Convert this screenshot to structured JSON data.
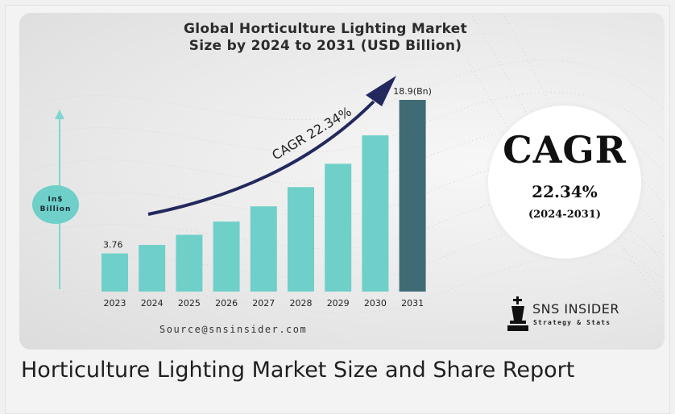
{
  "chart_data": {
    "type": "bar",
    "title": "Global Horticulture Lighting Market\nSize by 2024 to 2031 (USD Billion)",
    "categories": [
      "2023",
      "2024",
      "2025",
      "2026",
      "2027",
      "2028",
      "2029",
      "2030",
      "2031"
    ],
    "values": [
      3.76,
      4.6,
      5.6,
      6.9,
      8.4,
      10.3,
      12.6,
      15.4,
      18.9
    ],
    "data_labels": {
      "0": "3.76",
      "8": "18.9(Bn)"
    },
    "ylim": [
      0,
      18.9
    ],
    "ylabel": "In$\nBillion",
    "bar_color": "#6fcfc9",
    "highlight_color": "#3f6b75",
    "annotation": "CAGR 22.34%",
    "grid": false,
    "legend": "none"
  },
  "cagr_box": {
    "title": "CAGR",
    "value": "22.34%",
    "period": "(2024-2031)"
  },
  "source": "Source@snsinsider.com",
  "brand": {
    "name": "SNS INSIDER",
    "tagline": "Strategy & Stats"
  },
  "caption": "Horticulture Lighting Market Size and Share Report",
  "colors": {
    "accent_teal": "#6fcfc9",
    "arrow_navy": "#23285e",
    "dark_bar": "#3f6b75"
  }
}
